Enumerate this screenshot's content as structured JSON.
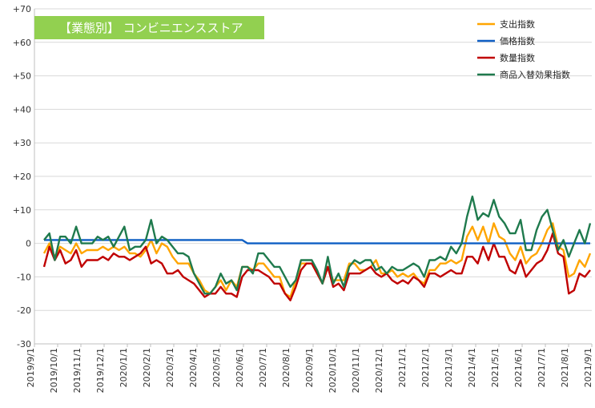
{
  "chart_data": {
    "type": "line",
    "title": "【業態別】 コンビニエンスストア",
    "xlabel": "",
    "ylabel": "",
    "ylim": [
      -30,
      70
    ],
    "yticks": [
      -30,
      -20,
      -10,
      0,
      10,
      20,
      30,
      40,
      50,
      60,
      70
    ],
    "ytick_labels": [
      "-30",
      "-20",
      "-10",
      "0",
      "+10",
      "+20",
      "+30",
      "+40",
      "+50",
      "+60",
      "+70"
    ],
    "grid": true,
    "legend_position": "top-right",
    "title_background": "#92d050",
    "x_tick_labels": [
      "2019/9/1",
      "2019/10/1",
      "2019/11/1",
      "2019/12/1",
      "2020/1/1",
      "2020/2/1",
      "2020/3/1",
      "2020/4/1",
      "2020/5/1",
      "2020/6/1",
      "2020/7/1",
      "2020/8/1",
      "2020/9/1",
      "2020/10/1",
      "2020/11/1",
      "2020/12/1",
      "2021/1/1",
      "2021/2/1",
      "2021/3/1",
      "2021/4/1",
      "2021/5/1",
      "2021/6/1",
      "2021/7/1",
      "2021/8/1",
      "2021/9/1"
    ],
    "x_start": "2019/9/1",
    "x_step": "1 week",
    "series": [
      {
        "name": "支出指数",
        "color": "#ffa500",
        "values": [
          -3,
          0,
          -4,
          -1,
          -2,
          -3,
          0,
          -3,
          -2,
          -2,
          -2,
          -1,
          -2,
          -1,
          -2,
          -1,
          -3,
          -3,
          -4,
          -2,
          1,
          -3,
          0,
          -1,
          -4,
          -6,
          -6,
          -6,
          -9,
          -11,
          -14,
          -15,
          -13,
          -11,
          -14,
          -11,
          -13,
          -7,
          -7,
          -8,
          -6,
          -6,
          -8,
          -10,
          -10,
          -15,
          -16,
          -11,
          -6,
          -6,
          -6,
          -9,
          -12,
          -7,
          -11,
          -11,
          -11,
          -6,
          -6,
          -8,
          -8,
          -7,
          -5,
          -9,
          -9,
          -8,
          -10,
          -9,
          -10,
          -9,
          -11,
          -12,
          -8,
          -8,
          -6,
          -6,
          -5,
          -6,
          -5,
          2,
          5,
          1,
          5,
          0,
          6,
          2,
          1,
          -3,
          -5,
          -1,
          -6,
          -4,
          -3,
          0,
          4,
          6,
          -1,
          -2,
          -10,
          -9,
          -5,
          -7,
          -3
        ]
      },
      {
        "name": "価格指数",
        "color": "#0f5fc4",
        "values": [
          1,
          1,
          1,
          1,
          1,
          1,
          1,
          1,
          1,
          1,
          1,
          1,
          1,
          1,
          1,
          1,
          1,
          1,
          1,
          1,
          1,
          1,
          1,
          1,
          1,
          1,
          1,
          1,
          1,
          1,
          1,
          1,
          1,
          1,
          1,
          1,
          1,
          1,
          0,
          0,
          0,
          0,
          0,
          0,
          0,
          0,
          0,
          0,
          0,
          0,
          0,
          0,
          0,
          0,
          0,
          0,
          0,
          0,
          0,
          0,
          0,
          0,
          0,
          0,
          0,
          0,
          0,
          0,
          0,
          0,
          0,
          0,
          0,
          0,
          0,
          0,
          0,
          0,
          0,
          0,
          0,
          0,
          0,
          0,
          0,
          0,
          0,
          0,
          0,
          0,
          0,
          0,
          0,
          0,
          0,
          0,
          0,
          0,
          0,
          0,
          0,
          0,
          0
        ]
      },
      {
        "name": "数量指数",
        "color": "#c00000",
        "values": [
          -7,
          -1,
          -5,
          -2,
          -6,
          -5,
          -2,
          -7,
          -5,
          -5,
          -5,
          -4,
          -5,
          -3,
          -4,
          -4,
          -5,
          -4,
          -3,
          -1,
          -6,
          -5,
          -6,
          -9,
          -9,
          -8,
          -10,
          -11,
          -12,
          -14,
          -16,
          -15,
          -15,
          -13,
          -15,
          -15,
          -16,
          -10,
          -8,
          -8,
          -8,
          -9,
          -10,
          -12,
          -12,
          -15,
          -17,
          -13,
          -8,
          -6,
          -6,
          -9,
          -12,
          -7,
          -13,
          -12,
          -14,
          -9,
          -9,
          -9,
          -8,
          -7,
          -9,
          -10,
          -9,
          -11,
          -12,
          -11,
          -12,
          -10,
          -11,
          -13,
          -9,
          -9,
          -10,
          -9,
          -8,
          -9,
          -9,
          -4,
          -4,
          -6,
          -1,
          -5,
          0,
          -4,
          -4,
          -8,
          -9,
          -5,
          -10,
          -8,
          -6,
          -5,
          -2,
          3,
          -3,
          -4,
          -15,
          -14,
          -9,
          -10,
          -8
        ]
      },
      {
        "name": "商品入替効果指数",
        "color": "#1f7a4d",
        "values": [
          1,
          3,
          -5,
          2,
          2,
          0,
          5,
          0,
          0,
          0,
          2,
          1,
          2,
          -1,
          2,
          5,
          -2,
          -1,
          -1,
          1,
          7,
          0,
          2,
          1,
          -1,
          -3,
          -3,
          -4,
          -9,
          -12,
          -15,
          -15,
          -13,
          -9,
          -12,
          -11,
          -14,
          -7,
          -7,
          -9,
          -3,
          -3,
          -5,
          -7,
          -7,
          -10,
          -13,
          -11,
          -5,
          -5,
          -5,
          -8,
          -12,
          -4,
          -12,
          -9,
          -13,
          -7,
          -5,
          -6,
          -5,
          -5,
          -8,
          -7,
          -9,
          -7,
          -8,
          -8,
          -7,
          -6,
          -7,
          -10,
          -5,
          -5,
          -4,
          -5,
          -1,
          -3,
          0,
          8,
          14,
          7,
          9,
          8,
          13,
          8,
          6,
          3,
          3,
          7,
          -2,
          -2,
          4,
          8,
          10,
          4,
          -2,
          1,
          -4,
          0,
          4,
          0,
          6
        ]
      }
    ]
  }
}
